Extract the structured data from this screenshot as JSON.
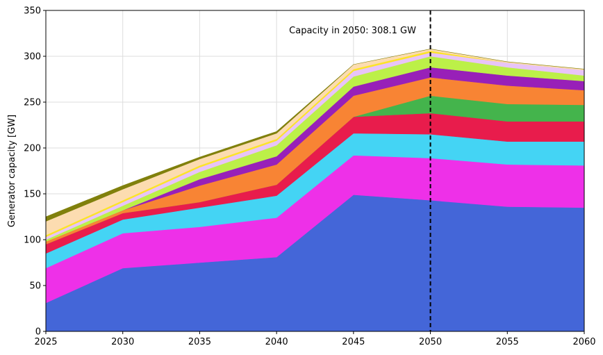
{
  "chart_data": {
    "type": "area",
    "stacked": true,
    "x": [
      2025,
      2030,
      2035,
      2040,
      2045,
      2050,
      2055,
      2060
    ],
    "xlim": [
      2025,
      2060
    ],
    "ylim": [
      0,
      350
    ],
    "xticks": [
      2025,
      2030,
      2035,
      2040,
      2045,
      2050,
      2055,
      2060
    ],
    "yticks": [
      0,
      50,
      100,
      150,
      200,
      250,
      300,
      350
    ],
    "xlabel": "",
    "ylabel": "Generator capacity [GW]",
    "grid": true,
    "legend": "none",
    "annotation": {
      "text": "Capacity in 2050: 308.1 GW",
      "x": 2050,
      "y": 325
    },
    "vline": {
      "x": 2050,
      "style": "dashed",
      "color": "#000000"
    },
    "series": [
      {
        "color": "#4466d8",
        "values": [
          31,
          69,
          75,
          81,
          149,
          143,
          136,
          135
        ]
      },
      {
        "color": "#ee30e8",
        "values": [
          38,
          38,
          39,
          43,
          43,
          46,
          46,
          46
        ]
      },
      {
        "color": "#44d4f4",
        "values": [
          16,
          15,
          21,
          24,
          24,
          26,
          25,
          26
        ]
      },
      {
        "color": "#e81c4c",
        "values": [
          10,
          7,
          6,
          12,
          18,
          23,
          22,
          22
        ]
      },
      {
        "color": "#44b44c",
        "values": [
          0,
          0,
          0,
          0,
          0,
          19,
          19,
          18
        ]
      },
      {
        "color": "#f88434",
        "values": [
          3,
          3,
          18,
          22,
          23,
          20,
          20,
          16
        ]
      },
      {
        "color": "#9820b8",
        "values": [
          0,
          0,
          7,
          9,
          10,
          11,
          11,
          10
        ]
      },
      {
        "color": "#bcf048",
        "values": [
          2,
          5,
          8,
          12,
          11,
          12,
          9,
          6
        ]
      },
      {
        "color": "#e8c4f8",
        "values": [
          3,
          4,
          5,
          5,
          6,
          4,
          5,
          6
        ]
      },
      {
        "color": "#fce428",
        "values": [
          2,
          2,
          2,
          2,
          2,
          2,
          0,
          0
        ]
      },
      {
        "color": "#fcdcb0",
        "values": [
          15,
          12,
          7,
          6,
          5,
          2,
          1,
          1
        ]
      },
      {
        "color": "#80800c",
        "values": [
          5,
          4,
          2,
          2,
          0,
          0,
          0,
          0
        ]
      }
    ]
  }
}
